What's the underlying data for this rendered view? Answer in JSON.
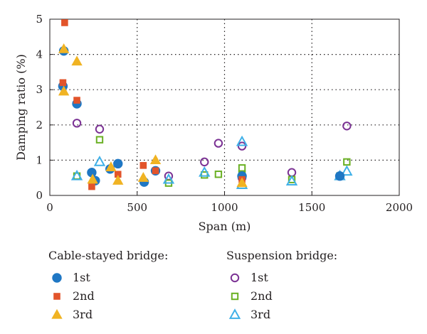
{
  "chart_data": {
    "type": "scatter",
    "xlabel": "Span (m)",
    "ylabel": "Damping ratio (%)",
    "xlim": [
      0,
      2000
    ],
    "ylim": [
      0,
      5
    ],
    "x_ticks": [
      "0",
      "500",
      "1000",
      "1500",
      "2000"
    ],
    "y_ticks": [
      "0",
      "1",
      "2",
      "3",
      "4",
      "5"
    ],
    "grid": "dotted",
    "legend_groups": [
      {
        "title": "Cable-stayed bridge:",
        "series": [
          {
            "name": "1st",
            "marker": "circle-filled",
            "color": "#1f77c4",
            "points": [
              [
                80,
                4.1
              ],
              [
                75,
                3.1
              ],
              [
                155,
                2.6
              ],
              [
                240,
                0.65
              ],
              [
                260,
                0.42
              ],
              [
                345,
                0.75
              ],
              [
                390,
                0.9
              ],
              [
                540,
                0.38
              ],
              [
                605,
                0.7
              ],
              [
                1100,
                0.55
              ],
              [
                1660,
                0.55
              ]
            ]
          },
          {
            "name": "2nd",
            "marker": "square-filled",
            "color": "#e2542b",
            "points": [
              [
                85,
                4.9
              ],
              [
                75,
                3.2
              ],
              [
                155,
                2.7
              ],
              [
                240,
                0.25
              ],
              [
                390,
                0.6
              ],
              [
                535,
                0.85
              ],
              [
                605,
                0.7
              ],
              [
                1100,
                0.45
              ]
            ]
          },
          {
            "name": "3rd",
            "marker": "triangle-filled",
            "color": "#f0b323",
            "points": [
              [
                80,
                4.15
              ],
              [
                80,
                2.95
              ],
              [
                155,
                3.8
              ],
              [
                245,
                0.45
              ],
              [
                350,
                0.8
              ],
              [
                390,
                0.42
              ],
              [
                535,
                0.5
              ],
              [
                605,
                1.0
              ],
              [
                1100,
                0.35
              ]
            ]
          }
        ]
      },
      {
        "title": "Suspension bridge:",
        "series": [
          {
            "name": "1st",
            "marker": "circle-open",
            "color": "#7b3294",
            "points": [
              [
                155,
                2.05
              ],
              [
                285,
                1.88
              ],
              [
                680,
                0.55
              ],
              [
                885,
                0.95
              ],
              [
                965,
                1.48
              ],
              [
                1100,
                1.4
              ],
              [
                1100,
                0.5
              ],
              [
                1385,
                0.65
              ],
              [
                1660,
                0.55
              ],
              [
                1700,
                1.97
              ]
            ]
          },
          {
            "name": "2nd",
            "marker": "square-open",
            "color": "#6ab023",
            "points": [
              [
                155,
                0.55
              ],
              [
                285,
                1.58
              ],
              [
                680,
                0.35
              ],
              [
                885,
                0.58
              ],
              [
                965,
                0.6
              ],
              [
                1100,
                0.78
              ],
              [
                1100,
                0.6
              ],
              [
                1385,
                0.45
              ],
              [
                1660,
                0.55
              ],
              [
                1700,
                0.95
              ]
            ]
          },
          {
            "name": "3rd",
            "marker": "triangle-open",
            "color": "#3fb0e8",
            "points": [
              [
                155,
                0.55
              ],
              [
                285,
                0.95
              ],
              [
                680,
                0.45
              ],
              [
                885,
                0.65
              ],
              [
                1100,
                1.52
              ],
              [
                1100,
                0.3
              ],
              [
                1385,
                0.4
              ],
              [
                1660,
                0.55
              ],
              [
                1700,
                0.68
              ]
            ]
          }
        ]
      }
    ]
  }
}
